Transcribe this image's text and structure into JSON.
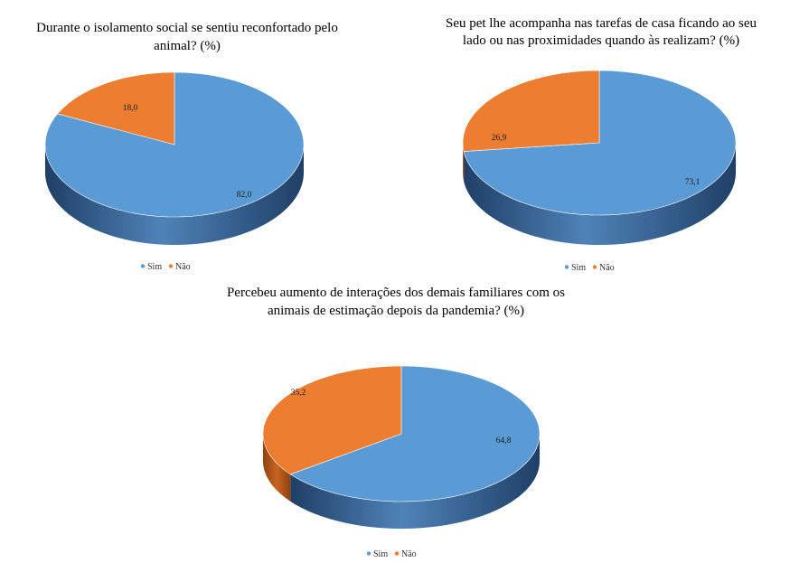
{
  "colors": {
    "sim_top": "#5b9bd5",
    "sim_side_dark": "#1f3f66",
    "sim_side_light": "#4f83b8",
    "nao_top": "#ed7d31",
    "nao_side_dark": "#8c4212",
    "nao_side_light": "#c8641e"
  },
  "chart_data": [
    {
      "type": "pie",
      "title": "Durante o isolamento social se sentiu reconfortado  pelo animal?  (%)",
      "title_lines": [
        "Durante o isolamento social se sentiu reconfortado  pelo",
        "animal?  (%)"
      ],
      "categories": [
        "Sim",
        "Não"
      ],
      "values": [
        82.0,
        18.0
      ],
      "labels": [
        "82,0",
        "18,0"
      ],
      "legend": [
        "Sim",
        "Não"
      ],
      "legend_position": "bottom"
    },
    {
      "type": "pie",
      "title": "Seu pet lhe acompanha nas tarefas de casa ficando ao seu lado ou nas proximidades quando às realizam?  (%)",
      "title_lines": [
        "Seu pet lhe acompanha nas tarefas de casa ficando ao seu",
        "lado ou nas proximidades quando às realizam?  (%)"
      ],
      "categories": [
        "Sim",
        "Não"
      ],
      "values": [
        73.1,
        26.9
      ],
      "labels": [
        "73,1",
        "26,9"
      ],
      "legend": [
        "Sim",
        "Não"
      ],
      "legend_position": "bottom"
    },
    {
      "type": "pie",
      "title": "Percebeu aumento de interações dos demais familiares com os animais de estimação depois da pandemia?  (%)",
      "title_lines": [
        "Percebeu aumento de interações dos demais familiares com os",
        "animais de estimação depois da pandemia?  (%)"
      ],
      "categories": [
        "Sim",
        "Não"
      ],
      "values": [
        64.8,
        35.2
      ],
      "labels": [
        "64,8",
        "35,2"
      ],
      "legend": [
        "Sim",
        "Não"
      ],
      "legend_position": "bottom"
    }
  ]
}
